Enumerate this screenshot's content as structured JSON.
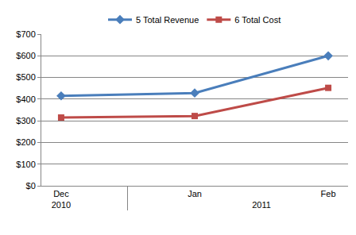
{
  "chart_data": {
    "type": "line",
    "categories": [
      "Dec",
      "Jan",
      "Feb"
    ],
    "category_groups": [
      {
        "label": "2010",
        "categories": [
          "Dec"
        ]
      },
      {
        "label": "2011",
        "categories": [
          "Jan",
          "Feb"
        ]
      }
    ],
    "series": [
      {
        "name": "5 Total Revenue",
        "color": "#4a7ebb",
        "marker": "diamond",
        "line_style": "solid",
        "values": [
          415,
          428,
          600
        ]
      },
      {
        "name": "6 Total Cost",
        "color": "#be4b48",
        "marker": "square",
        "line_style": "solid",
        "values": [
          315,
          322,
          452
        ]
      }
    ],
    "ylim": [
      0,
      700
    ],
    "yticks": [
      {
        "value": 0,
        "label": "$0"
      },
      {
        "value": 100,
        "label": "$100"
      },
      {
        "value": 200,
        "label": "$200"
      },
      {
        "value": 300,
        "label": "$300"
      },
      {
        "value": 400,
        "label": "$400"
      },
      {
        "value": 500,
        "label": "$500"
      },
      {
        "value": 600,
        "label": "$600"
      },
      {
        "value": 700,
        "label": "$700"
      }
    ],
    "grid": true,
    "legend": "top"
  }
}
